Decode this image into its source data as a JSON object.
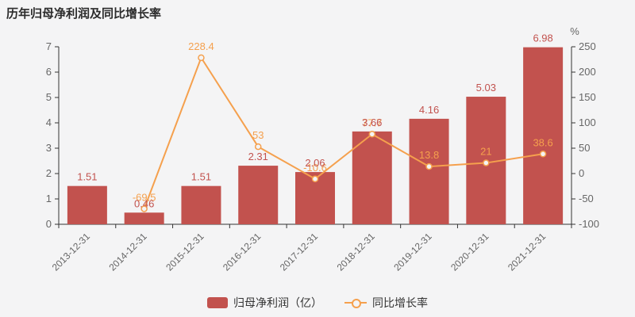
{
  "title": "历年归母净利润及同比增长率",
  "colors": {
    "background": "#f4f4f5",
    "bar": "#c2524e",
    "bar_label": "#c2524e",
    "line": "#f5a04d",
    "line_label": "#f5a04d",
    "marker_fill": "#f4f4f5",
    "axis_line": "#333333",
    "axis_text": "#666666",
    "legend_text": "#333333"
  },
  "legend": {
    "bar_label": "归母净利润（亿）",
    "line_label": "同比增长率"
  },
  "chart_data": {
    "type": "bar+line combo",
    "title": "历年归母净利润及同比增长率",
    "categories": [
      "2013-12-31",
      "2014-12-31",
      "2015-12-31",
      "2016-12-31",
      "2017-12-31",
      "2018-12-31",
      "2019-12-31",
      "2020-12-31",
      "2021-12-31"
    ],
    "series": [
      {
        "name": "归母净利润（亿）",
        "type": "bar",
        "axis": "left",
        "values": [
          1.51,
          0.46,
          1.51,
          2.31,
          2.06,
          3.66,
          4.16,
          5.03,
          6.98
        ],
        "labels": [
          "1.51",
          "0.46",
          "1.51",
          "2.31",
          "2.06",
          "3.66",
          "4.16",
          "5.03",
          "6.98"
        ]
      },
      {
        "name": "同比增长率",
        "type": "line",
        "axis": "right",
        "values": [
          null,
          -69.5,
          228.4,
          53,
          -10.6,
          77.7,
          13.8,
          21,
          38.6
        ],
        "labels": [
          "",
          "-69.5",
          "228.4",
          "53",
          "-10.6",
          "77.7",
          "13.8",
          "21",
          "38.6"
        ]
      }
    ],
    "left_axis": {
      "min": 0,
      "max": 7,
      "step": 1,
      "ticks": [
        0,
        1,
        2,
        3,
        4,
        5,
        6,
        7
      ]
    },
    "right_axis": {
      "min": -100,
      "max": 250,
      "step": 50,
      "ticks": [
        -100,
        -50,
        0,
        50,
        100,
        150,
        200,
        250
      ],
      "unit": "%"
    },
    "grid": false,
    "legend_position": "bottom-center",
    "x_label_rotation": 45
  }
}
